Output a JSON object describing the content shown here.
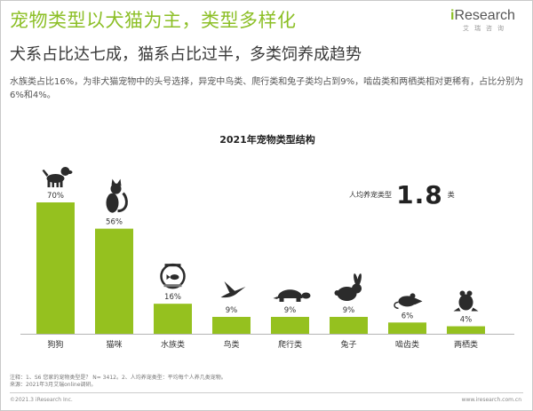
{
  "title": "宠物类型以犬猫为主，类型多样化",
  "subtitle": "犬系占比达七成，猫系占比过半，多类饲养成趋势",
  "description": "水族类占比16%，为非犬猫宠物中的头号选择，异宠中鸟类、爬行类和兔子类均占到9%，啮齿类和两栖类相对更稀有，占比分别为6%和4%。",
  "logo": {
    "main_i": "i",
    "main_rest": "Research",
    "sub": "艾瑞咨询"
  },
  "avg_pets": {
    "label": "人均养宠类型",
    "value": "1.8",
    "unit": "类"
  },
  "chart_data": {
    "type": "bar",
    "title": "2021年宠物类型结构",
    "categories": [
      "狗狗",
      "猫咪",
      "水族类",
      "鸟类",
      "爬行类",
      "兔子",
      "啮齿类",
      "两栖类"
    ],
    "values": [
      70,
      56,
      16,
      9,
      9,
      9,
      6,
      4
    ],
    "value_labels": [
      "70%",
      "56%",
      "16%",
      "9%",
      "9%",
      "9%",
      "6%",
      "4%"
    ],
    "icons": [
      "dog-icon",
      "cat-icon",
      "fishbowl-icon",
      "bird-icon",
      "turtle-icon",
      "rabbit-icon",
      "rat-icon",
      "frog-icon"
    ],
    "ylim": [
      0,
      100
    ],
    "bar_color": "#95c11f",
    "grid": false
  },
  "notes": {
    "line1": "注释：1、S6 您家的宠物类型是？ N= 3412。2、人均养宠类型：平均每个人养几类宠物。",
    "line2": "来源：2021年3月艾瑞online调研。"
  },
  "footer": {
    "left": "©2021.3 iResearch Inc.",
    "right": "www.iresearch.com.cn"
  },
  "colors": {
    "accent": "#8cbf26",
    "bar": "#95c11f",
    "icon": "#2b2b2b"
  }
}
